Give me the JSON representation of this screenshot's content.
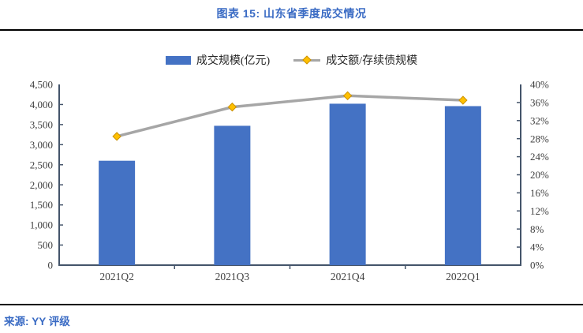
{
  "title": "图表 15: 山东省季度成交情况",
  "source": "来源: YY 评级",
  "colors": {
    "title_blue": "#3A6BC4",
    "bar_blue": "#4472C4",
    "line_gray": "#A6A6A6",
    "marker_gold": "#FFC000",
    "marker_edge": "#C98F00",
    "axis_line": "#44546A",
    "tick_text": "#404040",
    "rule_black": "#000000"
  },
  "legend": {
    "items": [
      {
        "label": "成交规模(亿元)",
        "swatch": "bar"
      },
      {
        "label": "成交额/存续债规模",
        "swatch": "line-diamond"
      }
    ]
  },
  "chart_data": {
    "type": "bar",
    "subtype": "bar+line combo, dual axis",
    "title": "图表 15: 山东省季度成交情况",
    "categories": [
      "2021Q2",
      "2021Q3",
      "2021Q4",
      "2022Q1"
    ],
    "series": [
      {
        "name": "成交规模(亿元)",
        "type": "bar",
        "axis": "left",
        "values": [
          2600,
          3470,
          4020,
          3960
        ]
      },
      {
        "name": "成交额/存续债规模",
        "type": "line",
        "axis": "right",
        "values": [
          28.5,
          35.0,
          37.5,
          36.5
        ]
      }
    ],
    "left_axis": {
      "min": 0,
      "max": 4500,
      "step": 500,
      "tick_labels": [
        "0",
        "500",
        "1,000",
        "1,500",
        "2,000",
        "2,500",
        "3,000",
        "3,500",
        "4,000",
        "4,500"
      ]
    },
    "right_axis": {
      "min": 0,
      "max": 40,
      "step": 4,
      "tick_labels": [
        "0%",
        "4%",
        "8%",
        "12%",
        "16%",
        "20%",
        "24%",
        "28%",
        "32%",
        "36%",
        "40%"
      ]
    },
    "grid": false,
    "legend_position": "top"
  }
}
